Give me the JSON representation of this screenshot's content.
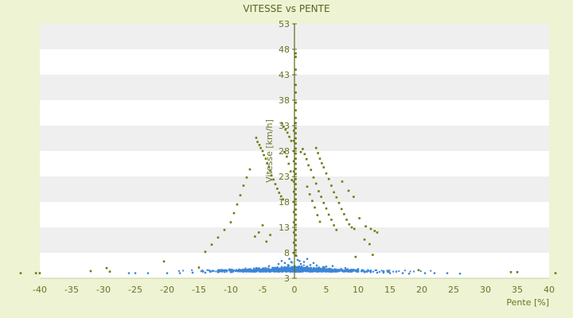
{
  "colors": {
    "background": "#eef3d3",
    "plot_band_light": "#ffffff",
    "plot_band_dark": "#efefef",
    "axis": "#5b6b1a",
    "series_points": "#6f7a12",
    "dense_cloud": "#3d86d6"
  },
  "chart_data": {
    "type": "scatter",
    "title": "VITESSE vs PENTE",
    "xlabel": "Pente [%]",
    "ylabel": "Vitesse [km/h]",
    "xlim": [
      -40,
      40
    ],
    "ylim": [
      3,
      53
    ],
    "x_ticks": [
      "-40",
      "-35",
      "-30",
      "-25",
      "-20",
      "-15",
      "-10",
      "-5",
      "0",
      "5",
      "10",
      "15",
      "20",
      "25",
      "30",
      "35",
      "40"
    ],
    "y_ticks": [
      "3",
      "8",
      "13",
      "18",
      "23",
      "28",
      "33",
      "38",
      "43",
      "48",
      "53"
    ],
    "grid": "horizontal bands",
    "legend": "none",
    "series": [
      {
        "points": [
          [
            -6.0,
            30.6
          ],
          [
            -5.8,
            29.8
          ],
          [
            -5.5,
            29.2
          ],
          [
            -5.3,
            28.6
          ],
          [
            -5.0,
            28.0
          ],
          [
            -4.8,
            27.2
          ],
          [
            -4.5,
            26.5
          ],
          [
            -4.3,
            25.6
          ],
          [
            -4.0,
            24.9
          ],
          [
            -3.8,
            24.1
          ],
          [
            -3.6,
            23.2
          ],
          [
            -3.3,
            22.4
          ],
          [
            -3.0,
            21.5
          ],
          [
            -2.7,
            20.6
          ],
          [
            -2.4,
            19.8
          ],
          [
            -2.1,
            19.1
          ],
          [
            -1.8,
            18.5
          ],
          [
            -2.0,
            33.5
          ],
          [
            -1.7,
            32.8
          ],
          [
            -1.4,
            32.2
          ],
          [
            -1.1,
            31.6
          ],
          [
            -0.8,
            30.8
          ],
          [
            -0.5,
            30.0
          ],
          [
            -1.6,
            27.8
          ],
          [
            -1.2,
            26.9
          ],
          [
            -0.9,
            25.5
          ],
          [
            -0.6,
            24.0
          ],
          [
            -0.4,
            22.3
          ],
          [
            -7.0,
            24.4
          ],
          [
            -7.5,
            22.8
          ],
          [
            -8.0,
            21.2
          ],
          [
            -8.5,
            19.3
          ],
          [
            -9.0,
            17.5
          ],
          [
            -9.5,
            15.8
          ],
          [
            -10.0,
            14.0
          ],
          [
            -11.0,
            12.5
          ],
          [
            -12.0,
            11.0
          ],
          [
            -13.0,
            9.6
          ],
          [
            -14.0,
            8.2
          ],
          [
            -5.0,
            13.4
          ],
          [
            -5.6,
            12.0
          ],
          [
            -6.2,
            11.2
          ],
          [
            -4.4,
            10.2
          ],
          [
            -3.8,
            11.5
          ],
          [
            -20.5,
            6.3
          ],
          [
            -15.0,
            5.1
          ],
          [
            -29.5,
            5.0
          ],
          [
            -32.0,
            4.4
          ],
          [
            -29.0,
            4.3
          ],
          [
            -43.0,
            4.0
          ],
          [
            -40.0,
            4.0
          ],
          [
            -40.6,
            4.0
          ],
          [
            1.0,
            27.8
          ],
          [
            1.3,
            28.4
          ],
          [
            1.6,
            27.4
          ],
          [
            1.9,
            26.4
          ],
          [
            2.2,
            25.2
          ],
          [
            2.6,
            24.3
          ],
          [
            3.0,
            22.8
          ],
          [
            3.4,
            21.6
          ],
          [
            3.8,
            20.1
          ],
          [
            4.2,
            19.0
          ],
          [
            4.6,
            17.8
          ],
          [
            5.0,
            16.7
          ],
          [
            5.4,
            15.5
          ],
          [
            5.8,
            14.5
          ],
          [
            6.2,
            13.4
          ],
          [
            6.6,
            12.5
          ],
          [
            3.4,
            28.6
          ],
          [
            3.7,
            27.6
          ],
          [
            4.0,
            26.5
          ],
          [
            4.3,
            25.6
          ],
          [
            4.6,
            24.8
          ],
          [
            5.0,
            23.6
          ],
          [
            5.4,
            22.5
          ],
          [
            5.8,
            21.2
          ],
          [
            6.2,
            19.9
          ],
          [
            6.6,
            18.9
          ],
          [
            7.0,
            17.8
          ],
          [
            7.4,
            16.6
          ],
          [
            7.8,
            15.6
          ],
          [
            8.2,
            14.5
          ],
          [
            8.6,
            13.6
          ],
          [
            9.0,
            13.0
          ],
          [
            9.4,
            12.7
          ],
          [
            2.0,
            21.0
          ],
          [
            2.4,
            19.5
          ],
          [
            2.8,
            18.2
          ],
          [
            3.2,
            16.9
          ],
          [
            3.6,
            15.4
          ],
          [
            4.0,
            14.1
          ],
          [
            7.5,
            22.0
          ],
          [
            8.5,
            20.2
          ],
          [
            9.3,
            19.0
          ],
          [
            10.2,
            14.8
          ],
          [
            11.2,
            13.2
          ],
          [
            12.0,
            12.7
          ],
          [
            12.6,
            12.3
          ],
          [
            13.0,
            12.0
          ],
          [
            11.0,
            10.6
          ],
          [
            11.8,
            9.7
          ],
          [
            12.3,
            7.6
          ],
          [
            9.6,
            7.2
          ],
          [
            19.5,
            4.6
          ],
          [
            34.0,
            4.2
          ],
          [
            35.0,
            4.2
          ],
          [
            41.0,
            4.0
          ],
          [
            0.2,
            47.2
          ],
          [
            0.2,
            46.5
          ],
          [
            0.2,
            44.0
          ],
          [
            0.2,
            41.0
          ],
          [
            0.2,
            39.5
          ],
          [
            0.2,
            37.5
          ],
          [
            0.2,
            36.0
          ],
          [
            0.2,
            34.5
          ],
          [
            0.2,
            33.5
          ],
          [
            0.2,
            32.5
          ],
          [
            0.2,
            31.5
          ],
          [
            0.2,
            30.5
          ],
          [
            0.2,
            29.5
          ],
          [
            0.2,
            28.5
          ],
          [
            0.2,
            27.5
          ],
          [
            0.2,
            26.5
          ],
          [
            0.2,
            25.5
          ],
          [
            0.2,
            24.5
          ],
          [
            0.2,
            23.5
          ],
          [
            0.2,
            22.5
          ],
          [
            0.2,
            21.5
          ],
          [
            0.2,
            20.5
          ],
          [
            0.2,
            19.5
          ],
          [
            0.2,
            18.5
          ],
          [
            0.2,
            17.5
          ],
          [
            0.2,
            16.5
          ],
          [
            0.2,
            15.5
          ],
          [
            0.2,
            14.5
          ],
          [
            0.2,
            13.5
          ],
          [
            0.2,
            12.5
          ],
          [
            0.2,
            11.5
          ],
          [
            0.2,
            10.5
          ],
          [
            0.2,
            9.5
          ],
          [
            0.2,
            8.5
          ],
          [
            0.2,
            7.5
          ],
          [
            -0.1,
            32.0
          ],
          [
            -0.1,
            30.0
          ],
          [
            -0.1,
            28.0
          ],
          [
            -0.1,
            26.0
          ],
          [
            -0.1,
            24.0
          ],
          [
            -0.1,
            22.0
          ],
          [
            -0.1,
            20.0
          ],
          [
            -0.1,
            18.0
          ],
          [
            -0.1,
            16.0
          ],
          [
            -0.1,
            14.0
          ],
          [
            -0.1,
            12.0
          ],
          [
            -0.1,
            10.0
          ],
          [
            -0.1,
            8.0
          ]
        ]
      },
      {
        "points": [
          [
            -26.0,
            4.0
          ],
          [
            -25.0,
            4.0
          ],
          [
            -23.0,
            4.0
          ],
          [
            -20.0,
            4.0
          ],
          [
            -18.0,
            4.0
          ],
          [
            -16.0,
            4.1
          ],
          [
            -14.0,
            4.1
          ],
          [
            -12.0,
            4.2
          ],
          [
            -10.0,
            4.2
          ],
          [
            -8.0,
            4.3
          ],
          [
            -6.0,
            4.4
          ],
          [
            -4.0,
            4.7
          ],
          [
            -3.0,
            4.9
          ],
          [
            -2.0,
            5.2
          ],
          [
            -1.0,
            5.6
          ],
          [
            -0.5,
            6.2
          ],
          [
            0.0,
            5.4
          ],
          [
            0.5,
            6.6
          ],
          [
            1.0,
            5.8
          ],
          [
            2.0,
            5.3
          ],
          [
            3.0,
            5.0
          ],
          [
            4.0,
            4.7
          ],
          [
            5.0,
            4.6
          ],
          [
            6.0,
            4.5
          ],
          [
            7.0,
            4.5
          ],
          [
            8.0,
            4.4
          ],
          [
            9.0,
            4.3
          ],
          [
            10.0,
            4.3
          ],
          [
            11.0,
            4.2
          ],
          [
            12.0,
            4.2
          ],
          [
            13.0,
            4.1
          ],
          [
            14.0,
            4.1
          ],
          [
            15.0,
            4.0
          ],
          [
            17.0,
            4.0
          ],
          [
            18.0,
            3.9
          ],
          [
            20.5,
            4.0
          ],
          [
            22.0,
            4.0
          ],
          [
            24.0,
            4.0
          ],
          [
            26.0,
            3.9
          ],
          [
            -4.0,
            5.4
          ],
          [
            -2.5,
            5.8
          ],
          [
            -1.5,
            6.0
          ],
          [
            -0.8,
            6.8
          ],
          [
            0.3,
            7.4
          ],
          [
            0.8,
            6.4
          ],
          [
            1.5,
            6.2
          ],
          [
            2.5,
            5.6
          ],
          [
            3.5,
            5.5
          ],
          [
            5.0,
            5.3
          ],
          [
            6.0,
            5.4
          ],
          [
            8.0,
            5.0
          ],
          [
            -2.0,
            6.4
          ],
          [
            2.0,
            6.8
          ],
          [
            3.0,
            6.0
          ],
          [
            4.5,
            5.2
          ],
          [
            -6.0,
            5.0
          ],
          [
            -8.0,
            4.7
          ],
          [
            -10.0,
            4.6
          ],
          [
            -12.0,
            4.4
          ],
          [
            10.0,
            4.8
          ],
          [
            12.0,
            4.5
          ],
          [
            14.0,
            4.4
          ],
          [
            16.0,
            4.3
          ]
        ]
      }
    ]
  }
}
